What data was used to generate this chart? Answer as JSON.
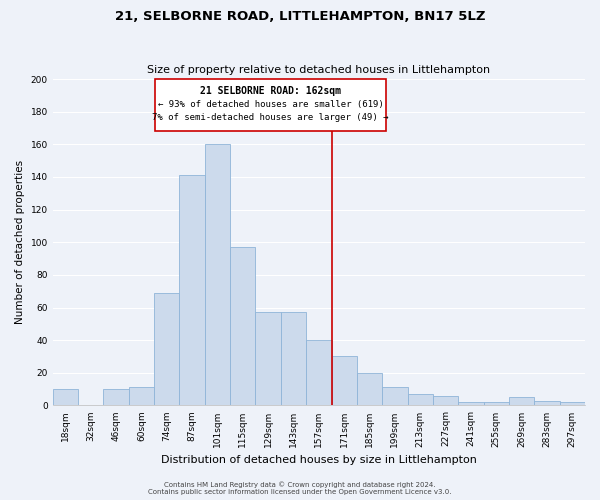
{
  "title": "21, SELBORNE ROAD, LITTLEHAMPTON, BN17 5LZ",
  "subtitle": "Size of property relative to detached houses in Littlehampton",
  "xlabel": "Distribution of detached houses by size in Littlehampton",
  "ylabel": "Number of detached properties",
  "bin_labels": [
    "18sqm",
    "32sqm",
    "46sqm",
    "60sqm",
    "74sqm",
    "87sqm",
    "101sqm",
    "115sqm",
    "129sqm",
    "143sqm",
    "157sqm",
    "171sqm",
    "185sqm",
    "199sqm",
    "213sqm",
    "227sqm",
    "241sqm",
    "255sqm",
    "269sqm",
    "283sqm",
    "297sqm"
  ],
  "bar_heights": [
    10,
    0,
    10,
    11,
    69,
    141,
    160,
    97,
    57,
    57,
    40,
    30,
    20,
    11,
    7,
    6,
    2,
    2,
    5,
    3,
    2
  ],
  "bar_color": "#ccdaec",
  "bar_edge_color": "#8fb4d8",
  "vline_x": 10.5,
  "vline_color": "#cc0000",
  "annotation_title": "21 SELBORNE ROAD: 162sqm",
  "annotation_line1": "← 93% of detached houses are smaller (619)",
  "annotation_line2": "7% of semi-detached houses are larger (49) →",
  "annotation_box_color": "#cc0000",
  "ylim": [
    0,
    200
  ],
  "yticks": [
    0,
    20,
    40,
    60,
    80,
    100,
    120,
    140,
    160,
    180,
    200
  ],
  "footnote1": "Contains HM Land Registry data © Crown copyright and database right 2024.",
  "footnote2": "Contains public sector information licensed under the Open Government Licence v3.0.",
  "bg_color": "#eef2f9",
  "grid_color": "#ffffff",
  "title_fontsize": 9.5,
  "subtitle_fontsize": 8,
  "xlabel_fontsize": 8,
  "ylabel_fontsize": 7.5,
  "tick_fontsize": 6.5,
  "annot_title_fontsize": 7,
  "annot_text_fontsize": 6.5,
  "footnote_fontsize": 5
}
